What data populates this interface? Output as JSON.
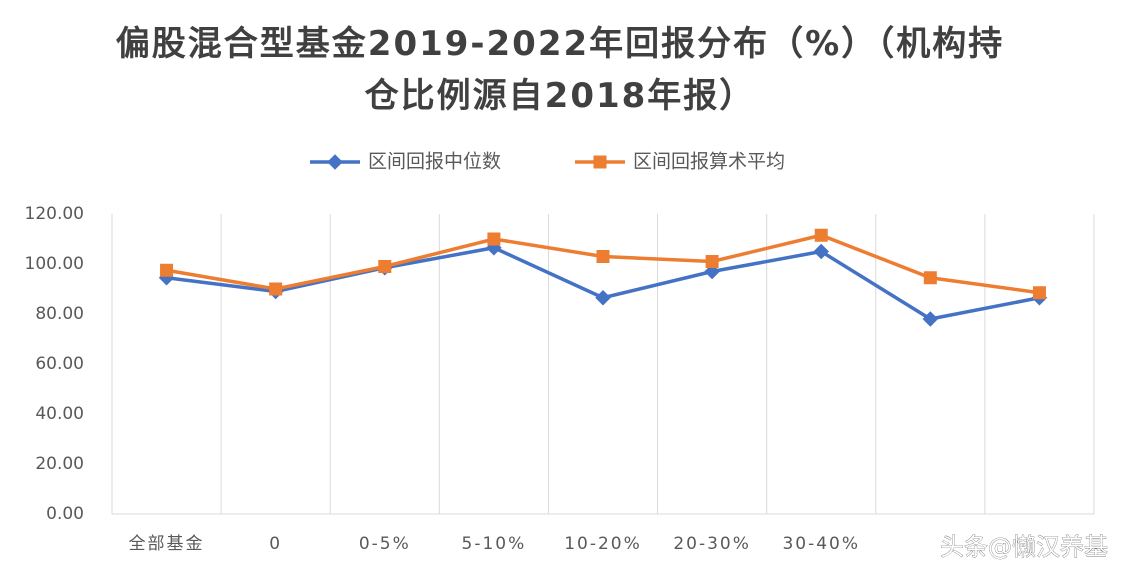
{
  "chart_data": {
    "type": "line",
    "title": "偏股混合型基金2019-2022年回报分布（%）（机构持仓比例源自2018年报）",
    "categories": [
      "全部基金",
      "0",
      "0-5%",
      "5-10%",
      "10-20%",
      "20-30%",
      "30-40%",
      null,
      null
    ],
    "series": [
      {
        "name": "区间回报中位数",
        "color": "#4472c4",
        "values": [
          94.5,
          89,
          98.5,
          106.5,
          86.5,
          97,
          105,
          78,
          86.5
        ]
      },
      {
        "name": "区间回报算术平均",
        "color": "#ed7d31",
        "values": [
          97.5,
          90,
          99,
          110,
          103,
          101,
          111.5,
          94.5,
          88.5
        ]
      }
    ],
    "ylim": [
      0,
      120
    ],
    "yticks": [
      {
        "value": 0,
        "label": "0.00"
      },
      {
        "value": 20,
        "label": "20.00"
      },
      {
        "value": 40,
        "label": "40.00"
      },
      {
        "value": 60,
        "label": "60.00"
      },
      {
        "value": 80,
        "label": "80.00"
      },
      {
        "value": 100,
        "label": "100.00"
      },
      {
        "value": 120,
        "label": "120.00"
      }
    ],
    "grid": true,
    "legend": "top",
    "watermark": "头条@懒汉养基"
  }
}
